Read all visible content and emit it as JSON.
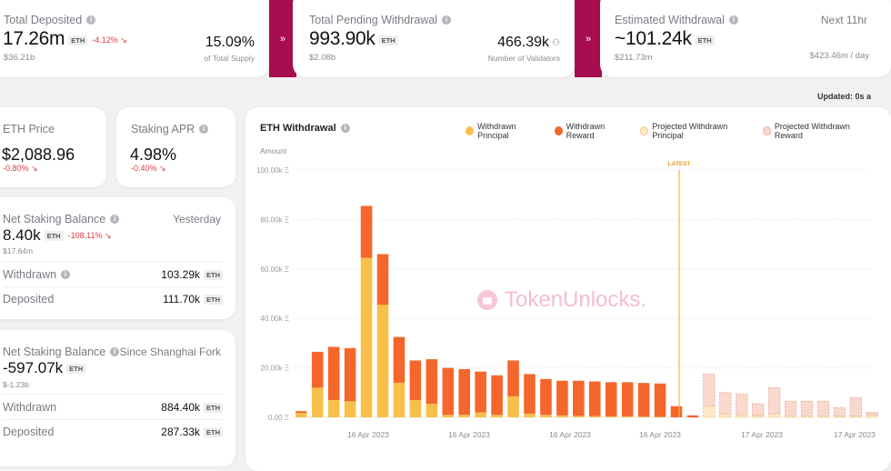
{
  "top_cards": {
    "total_deposited": {
      "label": "Total Deposited",
      "value": "17.26m",
      "unit": "ETH",
      "change": "-4.12% ↘",
      "sub": "$36.21b",
      "right_value": "15.09%",
      "right_sub": "of Total Supply"
    },
    "total_pending": {
      "label": "Total Pending Withdrawal",
      "value": "993.90k",
      "unit": "ETH",
      "sub": "$2.08b",
      "right_value": "466.39k",
      "right_sub": "Number of Validators"
    },
    "estimated": {
      "label": "Estimated Withdrawal",
      "value": "~101.24k",
      "unit": "ETH",
      "sub": "$211.73m",
      "right_label": "Next 11hr",
      "right_sub": "$423.46m / day"
    }
  },
  "updated_text": "Updated: 0s a",
  "eth_price": {
    "label": "ETH Price",
    "value": "$2,088.96",
    "change": "-0.80% ↘"
  },
  "staking_apr": {
    "label": "Staking APR",
    "value": "4.98%",
    "change": "-0.40% ↘"
  },
  "net_yesterday": {
    "label": "Net Staking Balance",
    "period": "Yesterday",
    "value": "8.40k",
    "unit": "ETH",
    "change": "-108.11% ↘",
    "sub": "$17.64m",
    "withdrawn_label": "Withdrawn",
    "withdrawn_value": "103.29k",
    "deposited_label": "Deposited",
    "deposited_value": "111.70k"
  },
  "net_shanghai": {
    "label": "Net Staking Balance",
    "period": "Since Shanghai Fork",
    "value": "-597.07k",
    "unit": "ETH",
    "sub": "$-1.23b",
    "withdrawn_label": "Withdrawn",
    "withdrawn_value": "884.40k",
    "deposited_label": "Deposited",
    "deposited_value": "287.33k"
  },
  "chart_card": {
    "title": "ETH Withdrawal",
    "y_label": "Amount",
    "latest_label": "LATEST",
    "watermark": "TokenUnlocks.",
    "legend": [
      {
        "name": "Withdrawn Principal",
        "color": "#f8c04a"
      },
      {
        "name": "Withdrawn Reward",
        "color": "#f4662b"
      },
      {
        "name": "Projected Withdrawn Principal",
        "color": "#fde9c4"
      },
      {
        "name": "Projected Withdrawn Reward",
        "color": "#f9d9cf"
      }
    ]
  },
  "chart_data": {
    "type": "bar",
    "stacked": true,
    "ylabel": "Amount",
    "y_ticks": [
      "0.00 Ξ",
      "20.00k Ξ",
      "40.00k Ξ",
      "60.00k Ξ",
      "80.00k Ξ",
      "100.00k Ξ"
    ],
    "ylim": [
      0,
      100000
    ],
    "x_tick_labels": [
      "16 Apr 2023",
      "16 Apr 2023",
      "16 Apr 2023",
      "16 Apr 2023",
      "17 Apr 2023",
      "17 Apr 2023"
    ],
    "latest_index": 23,
    "series": [
      {
        "name": "Withdrawn Principal",
        "values": [
          1800,
          12000,
          7000,
          6500,
          64500,
          45500,
          14000,
          7000,
          5500,
          1000,
          1000,
          2000,
          1000,
          8500,
          1500,
          1000,
          800,
          600,
          500,
          400,
          400,
          300,
          200,
          0,
          0,
          0,
          0,
          0,
          0,
          0,
          0,
          0,
          0,
          0,
          0,
          0
        ]
      },
      {
        "name": "Withdrawn Reward",
        "values": [
          700,
          14500,
          21500,
          21500,
          21000,
          20500,
          18500,
          16000,
          18000,
          19000,
          18500,
          16500,
          16000,
          14500,
          16000,
          14500,
          14000,
          14200,
          14000,
          13800,
          13800,
          13600,
          13500,
          4500,
          800,
          0,
          0,
          0,
          0,
          0,
          0,
          0,
          0,
          0,
          0,
          0
        ]
      },
      {
        "name": "Projected Withdrawn Principal",
        "values": [
          0,
          0,
          0,
          0,
          0,
          0,
          0,
          0,
          0,
          0,
          0,
          0,
          0,
          0,
          0,
          0,
          0,
          0,
          0,
          0,
          0,
          0,
          0,
          0,
          0,
          4500,
          1500,
          1000,
          800,
          1500,
          700,
          600,
          600,
          500,
          600,
          1000
        ]
      },
      {
        "name": "Projected Withdrawn Reward",
        "values": [
          0,
          0,
          0,
          0,
          0,
          0,
          0,
          0,
          0,
          0,
          0,
          0,
          0,
          0,
          0,
          0,
          0,
          0,
          0,
          0,
          0,
          0,
          0,
          0,
          0,
          13000,
          8500,
          8500,
          4700,
          10500,
          5800,
          5900,
          5900,
          3500,
          7400,
          1000
        ]
      }
    ]
  }
}
